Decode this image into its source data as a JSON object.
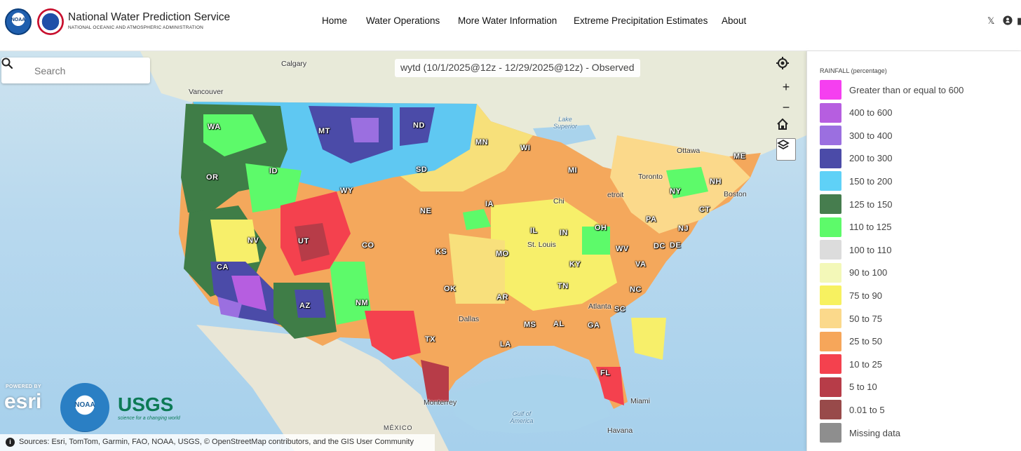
{
  "header": {
    "logo_noaa": "NOAA",
    "title": "National Water Prediction Service",
    "subtitle": "NATIONAL OCEANIC AND ATMOSPHERIC ADMINISTRATION",
    "nav": [
      "Home",
      "Water Operations",
      "More Water Information",
      "Extreme Precipitation Estimates",
      "About"
    ],
    "social_icons": [
      "x-icon",
      "github-icon"
    ]
  },
  "map": {
    "search_placeholder": "Search",
    "date_label": "wytd (10/1/2025@12z - 12/29/2025@12z) - Observed",
    "tools": [
      "locate-icon",
      "zoom-in-icon",
      "zoom-out-icon",
      "home-icon",
      "layers-icon"
    ],
    "attribution": {
      "prefix": "Sources: ",
      "text": "Esri, TomTom, Garmin, FAO, NOAA, USGS, © OpenStreetMap contributors, and the GIS User Community"
    },
    "states": [
      "WA",
      "MT",
      "ND",
      "MN",
      "OR",
      "ID",
      "SD",
      "WI",
      "MI",
      "ME",
      "WY",
      "NY",
      "NH",
      "NE",
      "IA",
      "CT",
      "NV",
      "UT",
      "CO",
      "IL",
      "IN",
      "OH",
      "PA",
      "NJ",
      "CA",
      "KS",
      "MO",
      "KY",
      "WV",
      "DC",
      "DE",
      "VA",
      "OK",
      "TN",
      "NC",
      "AZ",
      "NM",
      "AR",
      "SC",
      "MS",
      "AL",
      "GA",
      "TX",
      "LA",
      "FL"
    ],
    "cities": [
      "Calgary",
      "Vancouver",
      "Ottawa",
      "Toronto",
      "Boston",
      "etroit",
      "Chi",
      "St. Louis",
      "Atlanta",
      "Dallas",
      "Miami",
      "Havana",
      "Monterrey",
      "MÉXICO"
    ],
    "water_labels": [
      "Lake Superior",
      "Gulf of America"
    ],
    "brands": {
      "esri_powered": "POWERED BY",
      "esri": "esri",
      "noaa": "NOAA",
      "usgs": "USGS",
      "usgs_tagline": "science for a changing world"
    }
  },
  "legend": {
    "title": "RAINFALL (percentage)",
    "items": [
      {
        "label": "Greater than or equal to 600",
        "color": "#f53ff0"
      },
      {
        "label": "400 to 600",
        "color": "#b65ee0"
      },
      {
        "label": "300 to 400",
        "color": "#9b6fe0"
      },
      {
        "label": "200 to 300",
        "color": "#4b4ba8"
      },
      {
        "label": "150 to 200",
        "color": "#5fd1f7"
      },
      {
        "label": "125 to 150",
        "color": "#467d4e"
      },
      {
        "label": "110 to 125",
        "color": "#5dfa6a"
      },
      {
        "label": "100 to 110",
        "color": "#dcdcdc"
      },
      {
        "label": "90 to 100",
        "color": "#f3f8b8"
      },
      {
        "label": "75 to 90",
        "color": "#f7f160"
      },
      {
        "label": "50 to 75",
        "color": "#fbd98b"
      },
      {
        "label": "25 to 50",
        "color": "#f6a65a"
      },
      {
        "label": "10 to 25",
        "color": "#f4414e"
      },
      {
        "label": "5 to 10",
        "color": "#b73c48"
      },
      {
        "label": "0.01 to 5",
        "color": "#984a4a"
      },
      {
        "label": "Missing data",
        "color": "#8e8e8e"
      }
    ]
  }
}
